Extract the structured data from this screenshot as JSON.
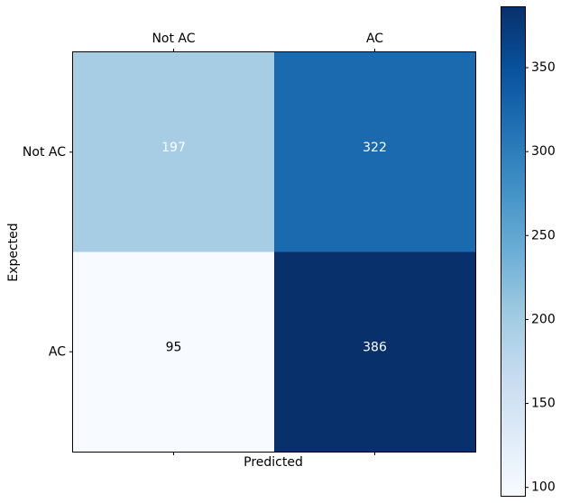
{
  "chart_data": {
    "type": "heatmap",
    "title": "",
    "xlabel": "Predicted",
    "ylabel": "Expected",
    "x_categories": [
      "Not AC",
      "AC"
    ],
    "y_categories": [
      "Not AC",
      "AC"
    ],
    "matrix": [
      [
        197,
        322
      ],
      [
        95,
        386
      ]
    ],
    "colormap": "Blues",
    "colorbar": {
      "min": 95,
      "max": 386,
      "ticks": [
        100,
        150,
        200,
        250,
        300,
        350
      ]
    },
    "annotation_colors": {
      "197": "#ffffff",
      "322": "#ffffff",
      "95": "#000000",
      "386": "#ffffff"
    }
  }
}
